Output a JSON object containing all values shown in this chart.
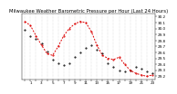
{
  "title": "Milwaukee Weather Barometric Pressure per Hour (Last 24 Hours)",
  "ylim": [
    29.15,
    30.25
  ],
  "yticks": [
    29.2,
    29.3,
    29.4,
    29.5,
    29.6,
    29.7,
    29.8,
    29.9,
    30.0,
    30.1,
    30.2
  ],
  "ytick_labels": [
    "29.2",
    "29.3",
    "29.4",
    "29.5",
    "29.6",
    "29.7",
    "29.8",
    "29.9",
    "30.0",
    "30.1",
    "30.2"
  ],
  "hours": [
    0,
    1,
    2,
    3,
    4,
    5,
    6,
    7,
    8,
    9,
    10,
    11,
    12,
    13,
    14,
    15,
    16,
    17,
    18,
    19,
    20,
    21,
    22,
    23
  ],
  "pressure_current": [
    30.12,
    30.05,
    29.88,
    29.72,
    29.58,
    29.55,
    29.7,
    29.88,
    30.0,
    30.08,
    30.12,
    30.1,
    29.95,
    29.72,
    29.55,
    29.5,
    29.48,
    29.52,
    29.4,
    29.3,
    29.25,
    29.22,
    29.2,
    29.22
  ],
  "pressure_avg": [
    29.98,
    29.88,
    29.82,
    29.75,
    29.62,
    29.48,
    29.42,
    29.38,
    29.42,
    29.52,
    29.6,
    29.68,
    29.72,
    29.65,
    29.58,
    29.42,
    29.35,
    29.3,
    29.28,
    29.3,
    29.35,
    29.32,
    29.28,
    29.25
  ],
  "current_color": "#dd0000",
  "avg_color": "#000000",
  "bg_color": "#ffffff",
  "grid_color": "#bbbbbb",
  "title_fontsize": 3.8,
  "tick_fontsize": 3.0,
  "xlim": [
    -0.5,
    23.5
  ],
  "xtick_step": 2
}
